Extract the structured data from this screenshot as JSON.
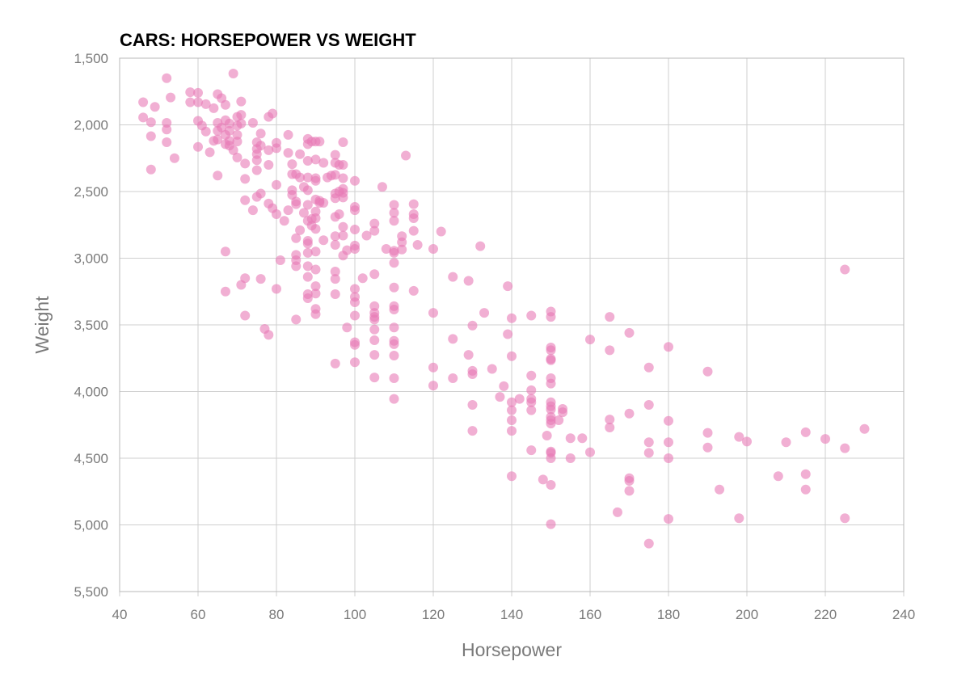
{
  "chart_data": {
    "type": "scatter",
    "title": "CARS: HORSEPOWER VS WEIGHT",
    "xlabel": "Horsepower",
    "ylabel": "Weight",
    "xlim": [
      40,
      240
    ],
    "ylim": [
      1500,
      5500
    ],
    "y_reversed": true,
    "grid": true,
    "x_ticks": [
      "40",
      "60",
      "80",
      "100",
      "120",
      "140",
      "160",
      "180",
      "200",
      "220",
      "240"
    ],
    "y_ticks": [
      "1,500",
      "2,000",
      "2,500",
      "3,000",
      "3,500",
      "4,000",
      "4,500",
      "5,000",
      "5,500"
    ],
    "point_color": "#e879b5",
    "points": [
      [
        46,
        1830
      ],
      [
        46,
        1945
      ],
      [
        48,
        1980
      ],
      [
        48,
        2085
      ],
      [
        48,
        2335
      ],
      [
        49,
        1865
      ],
      [
        52,
        1650
      ],
      [
        52,
        1985
      ],
      [
        52,
        2035
      ],
      [
        52,
        2130
      ],
      [
        53,
        1795
      ],
      [
        54,
        2250
      ],
      [
        58,
        1755
      ],
      [
        58,
        1830
      ],
      [
        60,
        1760
      ],
      [
        60,
        1830
      ],
      [
        60,
        1970
      ],
      [
        60,
        2165
      ],
      [
        61,
        2005
      ],
      [
        62,
        1845
      ],
      [
        62,
        2050
      ],
      [
        63,
        2205
      ],
      [
        64,
        1875
      ],
      [
        64,
        2120
      ],
      [
        65,
        1770
      ],
      [
        65,
        1985
      ],
      [
        65,
        2045
      ],
      [
        65,
        2110
      ],
      [
        65,
        2380
      ],
      [
        66,
        1800
      ],
      [
        66,
        2020
      ],
      [
        67,
        1850
      ],
      [
        67,
        1965
      ],
      [
        67,
        2075
      ],
      [
        67,
        2145
      ],
      [
        67,
        2950
      ],
      [
        67,
        3250
      ],
      [
        68,
        1990
      ],
      [
        68,
        2045
      ],
      [
        68,
        2120
      ],
      [
        68,
        2155
      ],
      [
        69,
        1615
      ],
      [
        69,
        2190
      ],
      [
        70,
        1940
      ],
      [
        70,
        2005
      ],
      [
        70,
        2075
      ],
      [
        70,
        2125
      ],
      [
        70,
        2245
      ],
      [
        71,
        1825
      ],
      [
        71,
        1925
      ],
      [
        71,
        1990
      ],
      [
        71,
        3200
      ],
      [
        72,
        2290
      ],
      [
        72,
        2405
      ],
      [
        72,
        2565
      ],
      [
        72,
        3150
      ],
      [
        72,
        3430
      ],
      [
        74,
        1985
      ],
      [
        74,
        2640
      ],
      [
        75,
        2130
      ],
      [
        75,
        2180
      ],
      [
        75,
        2220
      ],
      [
        75,
        2265
      ],
      [
        75,
        2340
      ],
      [
        75,
        2540
      ],
      [
        76,
        2065
      ],
      [
        76,
        2155
      ],
      [
        76,
        2515
      ],
      [
        76,
        3155
      ],
      [
        77,
        3530
      ],
      [
        78,
        1940
      ],
      [
        78,
        2190
      ],
      [
        78,
        2300
      ],
      [
        78,
        2590
      ],
      [
        78,
        3575
      ],
      [
        79,
        1915
      ],
      [
        79,
        2625
      ],
      [
        80,
        2135
      ],
      [
        80,
        2175
      ],
      [
        80,
        2450
      ],
      [
        80,
        2670
      ],
      [
        80,
        3230
      ],
      [
        81,
        3015
      ],
      [
        82,
        2720
      ],
      [
        83,
        2075
      ],
      [
        83,
        2210
      ],
      [
        83,
        2640
      ],
      [
        84,
        2295
      ],
      [
        84,
        2370
      ],
      [
        84,
        2490
      ],
      [
        84,
        2525
      ],
      [
        85,
        2370
      ],
      [
        85,
        2575
      ],
      [
        85,
        2595
      ],
      [
        85,
        2850
      ],
      [
        85,
        2975
      ],
      [
        85,
        3015
      ],
      [
        85,
        3060
      ],
      [
        85,
        3460
      ],
      [
        86,
        2220
      ],
      [
        86,
        2395
      ],
      [
        86,
        2790
      ],
      [
        87,
        2465
      ],
      [
        87,
        2660
      ],
      [
        88,
        2105
      ],
      [
        88,
        2145
      ],
      [
        88,
        2270
      ],
      [
        88,
        2395
      ],
      [
        88,
        2490
      ],
      [
        88,
        2600
      ],
      [
        88,
        2720
      ],
      [
        88,
        2870
      ],
      [
        88,
        2890
      ],
      [
        88,
        2960
      ],
      [
        88,
        3060
      ],
      [
        88,
        3140
      ],
      [
        88,
        3270
      ],
      [
        88,
        3300
      ],
      [
        89,
        2125
      ],
      [
        89,
        2705
      ],
      [
        89,
        2755
      ],
      [
        90,
        2125
      ],
      [
        90,
        2260
      ],
      [
        90,
        2400
      ],
      [
        90,
        2420
      ],
      [
        90,
        2560
      ],
      [
        90,
        2650
      ],
      [
        90,
        2700
      ],
      [
        90,
        2780
      ],
      [
        90,
        2950
      ],
      [
        90,
        3085
      ],
      [
        90,
        3210
      ],
      [
        90,
        3265
      ],
      [
        90,
        3380
      ],
      [
        90,
        3420
      ],
      [
        91,
        2125
      ],
      [
        91,
        2570
      ],
      [
        91,
        2585
      ],
      [
        92,
        2285
      ],
      [
        92,
        2865
      ],
      [
        92,
        2585
      ],
      [
        93,
        2395
      ],
      [
        94,
        2380
      ],
      [
        95,
        2225
      ],
      [
        95,
        2285
      ],
      [
        95,
        2375
      ],
      [
        95,
        2515
      ],
      [
        95,
        2550
      ],
      [
        95,
        2690
      ],
      [
        95,
        2835
      ],
      [
        95,
        2900
      ],
      [
        95,
        3100
      ],
      [
        95,
        3155
      ],
      [
        95,
        3270
      ],
      [
        95,
        3790
      ],
      [
        96,
        2300
      ],
      [
        96,
        2500
      ],
      [
        96,
        2670
      ],
      [
        97,
        2130
      ],
      [
        97,
        2300
      ],
      [
        97,
        2400
      ],
      [
        97,
        2480
      ],
      [
        97,
        2510
      ],
      [
        97,
        2545
      ],
      [
        97,
        2765
      ],
      [
        97,
        2830
      ],
      [
        97,
        2980
      ],
      [
        98,
        2940
      ],
      [
        98,
        3520
      ],
      [
        100,
        2420
      ],
      [
        100,
        2615
      ],
      [
        100,
        2640
      ],
      [
        100,
        2785
      ],
      [
        100,
        2905
      ],
      [
        100,
        2930
      ],
      [
        100,
        3230
      ],
      [
        100,
        3290
      ],
      [
        100,
        3330
      ],
      [
        100,
        3430
      ],
      [
        100,
        3630
      ],
      [
        100,
        3650
      ],
      [
        100,
        3780
      ],
      [
        102,
        3150
      ],
      [
        103,
        2830
      ],
      [
        105,
        2740
      ],
      [
        105,
        2795
      ],
      [
        105,
        3120
      ],
      [
        105,
        3360
      ],
      [
        105,
        3410
      ],
      [
        105,
        3440
      ],
      [
        105,
        3460
      ],
      [
        105,
        3535
      ],
      [
        105,
        3615
      ],
      [
        105,
        3725
      ],
      [
        105,
        3895
      ],
      [
        107,
        2465
      ],
      [
        108,
        2930
      ],
      [
        110,
        2600
      ],
      [
        110,
        2660
      ],
      [
        110,
        2720
      ],
      [
        110,
        2945
      ],
      [
        110,
        2960
      ],
      [
        110,
        3035
      ],
      [
        110,
        3220
      ],
      [
        110,
        3360
      ],
      [
        110,
        3385
      ],
      [
        110,
        3520
      ],
      [
        110,
        3620
      ],
      [
        110,
        3645
      ],
      [
        110,
        3730
      ],
      [
        110,
        3900
      ],
      [
        110,
        4055
      ],
      [
        112,
        2835
      ],
      [
        112,
        2880
      ],
      [
        112,
        2935
      ],
      [
        113,
        2230
      ],
      [
        115,
        2595
      ],
      [
        115,
        2670
      ],
      [
        115,
        2700
      ],
      [
        115,
        2795
      ],
      [
        115,
        3245
      ],
      [
        116,
        2900
      ],
      [
        120,
        2930
      ],
      [
        120,
        3410
      ],
      [
        120,
        3820
      ],
      [
        120,
        3955
      ],
      [
        122,
        2800
      ],
      [
        125,
        3140
      ],
      [
        125,
        3605
      ],
      [
        125,
        3900
      ],
      [
        129,
        3170
      ],
      [
        129,
        3725
      ],
      [
        130,
        3505
      ],
      [
        130,
        3845
      ],
      [
        130,
        3870
      ],
      [
        130,
        4100
      ],
      [
        130,
        4295
      ],
      [
        132,
        2910
      ],
      [
        133,
        3410
      ],
      [
        135,
        3830
      ],
      [
        137,
        4040
      ],
      [
        138,
        3960
      ],
      [
        139,
        3210
      ],
      [
        139,
        3570
      ],
      [
        140,
        3450
      ],
      [
        140,
        3735
      ],
      [
        140,
        4080
      ],
      [
        140,
        4140
      ],
      [
        140,
        4215
      ],
      [
        140,
        4295
      ],
      [
        140,
        4635
      ],
      [
        142,
        4055
      ],
      [
        145,
        3430
      ],
      [
        145,
        3880
      ],
      [
        145,
        3990
      ],
      [
        145,
        4055
      ],
      [
        145,
        4080
      ],
      [
        145,
        4140
      ],
      [
        145,
        4440
      ],
      [
        148,
        4660
      ],
      [
        149,
        4330
      ],
      [
        150,
        3400
      ],
      [
        150,
        3440
      ],
      [
        150,
        3670
      ],
      [
        150,
        3690
      ],
      [
        150,
        3755
      ],
      [
        150,
        3765
      ],
      [
        150,
        3900
      ],
      [
        150,
        3940
      ],
      [
        150,
        4080
      ],
      [
        150,
        4110
      ],
      [
        150,
        4135
      ],
      [
        150,
        4190
      ],
      [
        150,
        4215
      ],
      [
        150,
        4240
      ],
      [
        150,
        4450
      ],
      [
        150,
        4460
      ],
      [
        150,
        4500
      ],
      [
        150,
        4700
      ],
      [
        150,
        4995
      ],
      [
        152,
        4215
      ],
      [
        153,
        4130
      ],
      [
        153,
        4155
      ],
      [
        155,
        4350
      ],
      [
        155,
        4500
      ],
      [
        158,
        4350
      ],
      [
        160,
        3610
      ],
      [
        160,
        4455
      ],
      [
        165,
        3440
      ],
      [
        165,
        3690
      ],
      [
        165,
        4210
      ],
      [
        165,
        4270
      ],
      [
        167,
        4905
      ],
      [
        170,
        3560
      ],
      [
        170,
        4165
      ],
      [
        170,
        4650
      ],
      [
        170,
        4670
      ],
      [
        170,
        4745
      ],
      [
        175,
        3820
      ],
      [
        175,
        4100
      ],
      [
        175,
        4380
      ],
      [
        175,
        4460
      ],
      [
        175,
        5140
      ],
      [
        180,
        3665
      ],
      [
        180,
        4220
      ],
      [
        180,
        4380
      ],
      [
        180,
        4500
      ],
      [
        180,
        4955
      ],
      [
        190,
        3850
      ],
      [
        190,
        4310
      ],
      [
        190,
        4420
      ],
      [
        193,
        4735
      ],
      [
        198,
        4340
      ],
      [
        198,
        4950
      ],
      [
        200,
        4375
      ],
      [
        208,
        4635
      ],
      [
        210,
        4380
      ],
      [
        215,
        4305
      ],
      [
        215,
        4620
      ],
      [
        215,
        4735
      ],
      [
        220,
        4355
      ],
      [
        225,
        3085
      ],
      [
        225,
        4425
      ],
      [
        225,
        4950
      ],
      [
        230,
        4280
      ]
    ]
  }
}
